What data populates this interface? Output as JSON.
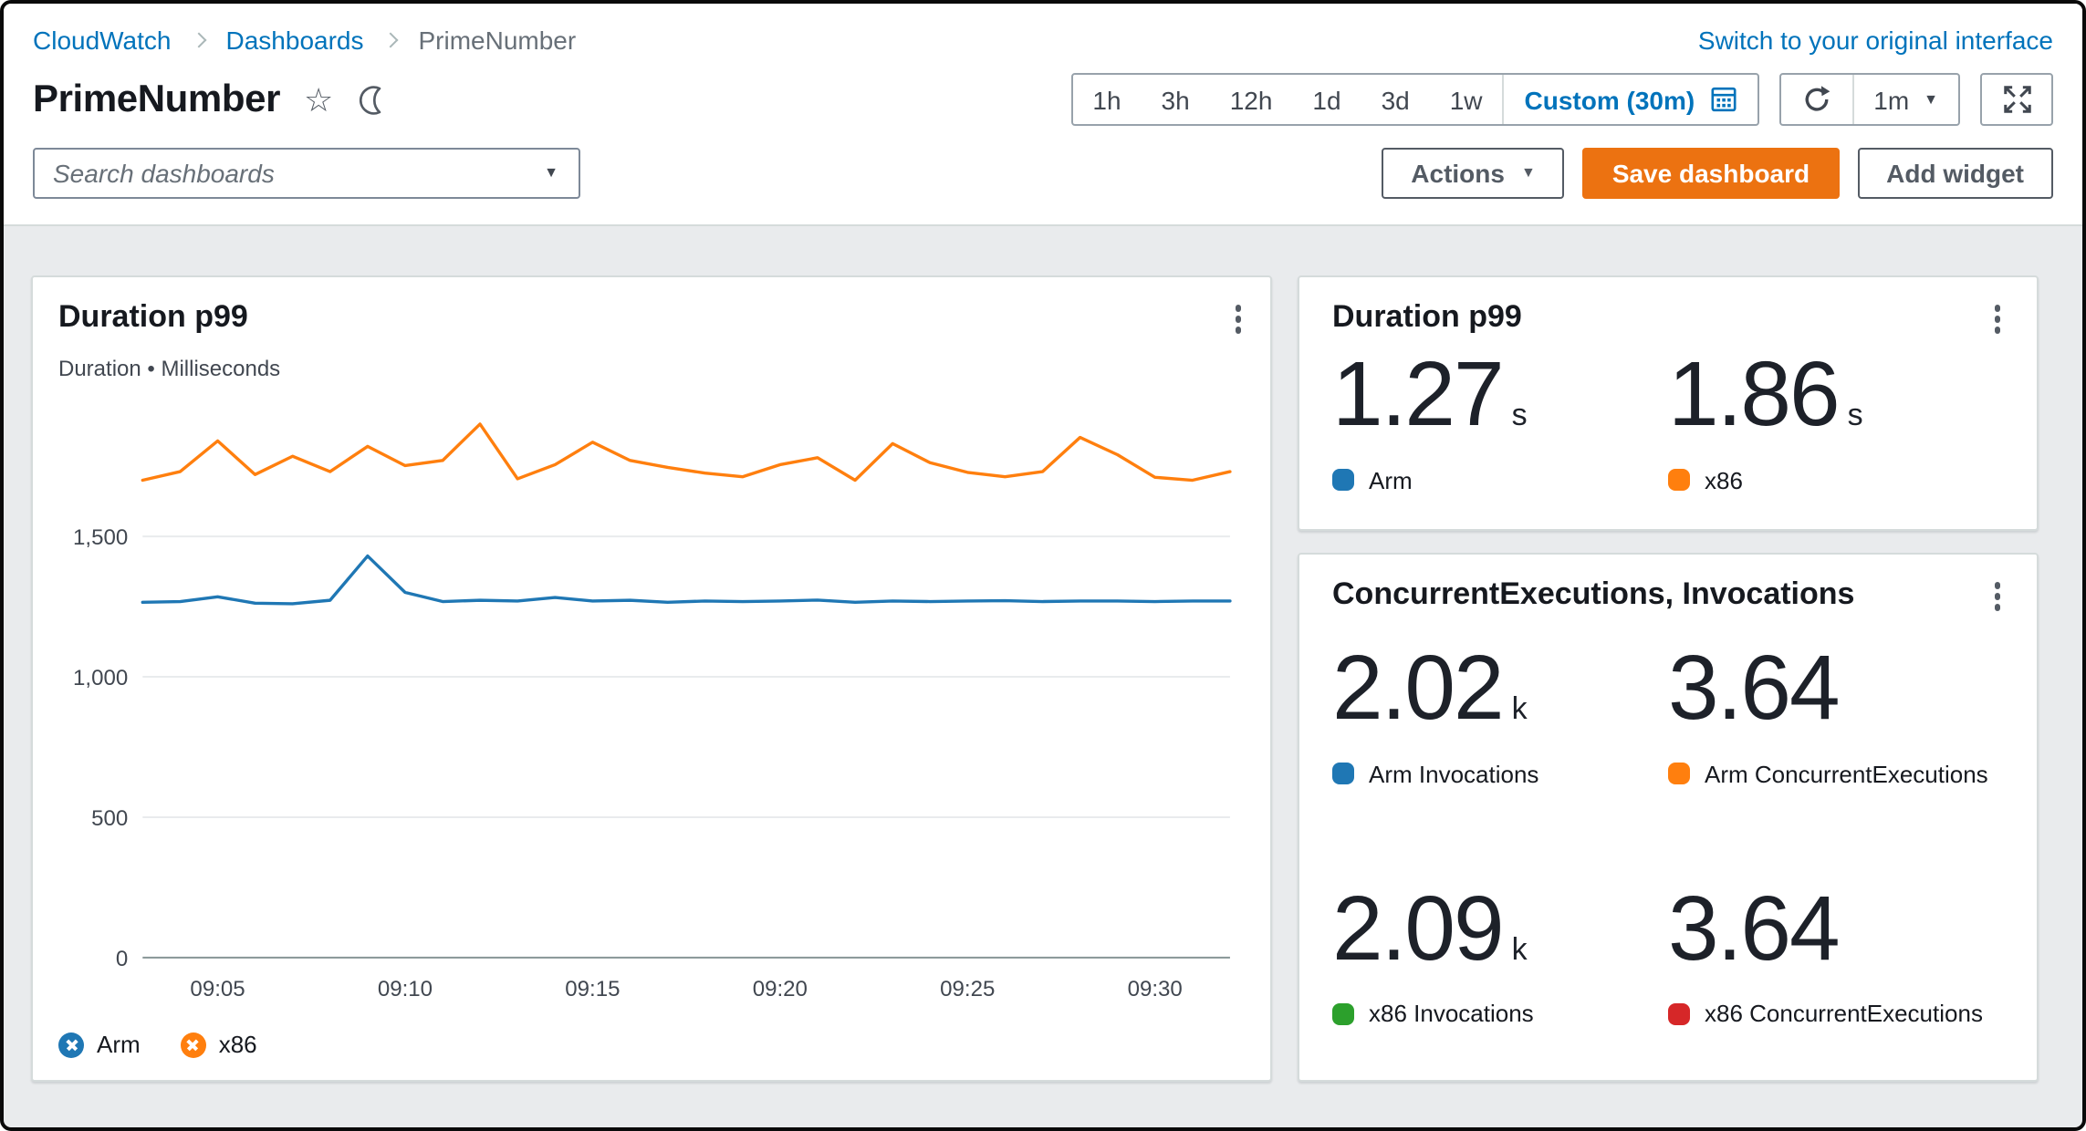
{
  "breadcrumb": {
    "items": [
      {
        "label": "CloudWatch"
      },
      {
        "label": "Dashboards"
      },
      {
        "label": "PrimeNumber"
      }
    ]
  },
  "top_bar": {
    "switch_link": "Switch to your original interface"
  },
  "page": {
    "title": "PrimeNumber"
  },
  "time_controls": {
    "ranges": [
      "1h",
      "3h",
      "12h",
      "1d",
      "3d",
      "1w"
    ],
    "custom_label": "Custom (30m)",
    "refresh_interval": "1m"
  },
  "toolbar": {
    "search_placeholder": "Search dashboards",
    "actions_label": "Actions",
    "save_label": "Save dashboard",
    "add_widget_label": "Add widget"
  },
  "colors": {
    "link": "#0073bb",
    "primary_button": "#ec7211",
    "content_background": "#e9ebed",
    "arm": "#1f77b4",
    "x86": "#ff7f0e",
    "x86_invocations": "#2ca02c",
    "x86_concurrent": "#d62728"
  },
  "chart_data": [
    {
      "type": "line",
      "title": "Duration p99",
      "ylabel": "Duration • Milliseconds",
      "xlabel": "",
      "x_tick_labels": [
        "09:05",
        "09:10",
        "09:15",
        "09:20",
        "09:25",
        "09:30"
      ],
      "x_tick_minutes": [
        5,
        10,
        15,
        20,
        25,
        30
      ],
      "x_range_minutes": [
        3,
        32
      ],
      "ylim": [
        0,
        2000
      ],
      "y_ticks": [
        0,
        500,
        1000,
        1500
      ],
      "grid": true,
      "legend_position": "bottom-left",
      "series": [
        {
          "name": "Arm",
          "color": "#1f77b4",
          "x": [
            3,
            4,
            5,
            6,
            7,
            8,
            9,
            10,
            11,
            12,
            13,
            14,
            15,
            16,
            17,
            18,
            19,
            20,
            21,
            22,
            23,
            24,
            25,
            26,
            27,
            28,
            29,
            30,
            31,
            32
          ],
          "values": [
            1265,
            1268,
            1285,
            1262,
            1260,
            1272,
            1430,
            1300,
            1268,
            1272,
            1270,
            1282,
            1270,
            1272,
            1265,
            1270,
            1268,
            1270,
            1273,
            1265,
            1270,
            1268,
            1270,
            1271,
            1268,
            1270,
            1270,
            1268,
            1270,
            1270
          ]
        },
        {
          "name": "x86",
          "color": "#ff7f0e",
          "x": [
            3,
            4,
            5,
            6,
            7,
            8,
            9,
            10,
            11,
            12,
            13,
            14,
            15,
            16,
            17,
            18,
            19,
            20,
            21,
            22,
            23,
            24,
            25,
            26,
            27,
            28,
            29,
            30,
            31,
            32
          ],
          "values": [
            1700,
            1730,
            1840,
            1720,
            1785,
            1730,
            1820,
            1752,
            1770,
            1900,
            1705,
            1755,
            1835,
            1770,
            1745,
            1725,
            1712,
            1755,
            1780,
            1700,
            1830,
            1762,
            1728,
            1712,
            1730,
            1852,
            1790,
            1710,
            1700,
            1730
          ]
        }
      ]
    },
    {
      "type": "single-value",
      "title": "Duration p99",
      "values": [
        {
          "metric": "Arm",
          "value": "1.27",
          "unit": "s",
          "color": "#1f77b4"
        },
        {
          "metric": "x86",
          "value": "1.86",
          "unit": "s",
          "color": "#ff7f0e"
        }
      ]
    },
    {
      "type": "single-value",
      "title": "ConcurrentExecutions, Invocations",
      "values": [
        {
          "metric": "Arm Invocations",
          "value": "2.02",
          "unit": "k",
          "color": "#1f77b4"
        },
        {
          "metric": "Arm ConcurrentExecutions",
          "value": "3.64",
          "unit": "",
          "color": "#ff7f0e"
        },
        {
          "metric": "x86 Invocations",
          "value": "2.09",
          "unit": "k",
          "color": "#2ca02c"
        },
        {
          "metric": "x86 ConcurrentExecutions",
          "value": "3.64",
          "unit": "",
          "color": "#d62728"
        }
      ]
    }
  ]
}
